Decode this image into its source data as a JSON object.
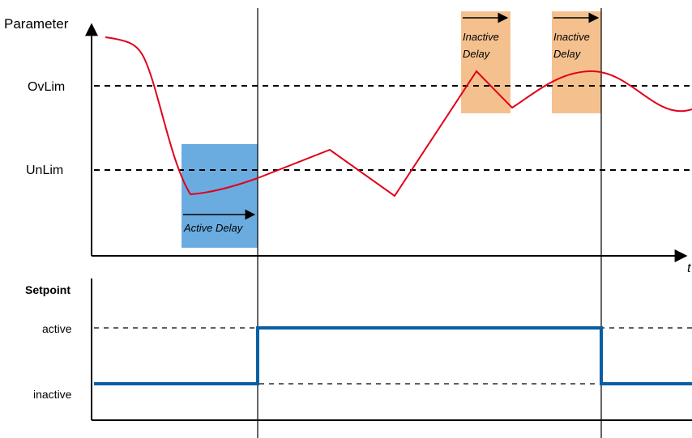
{
  "top_chart": {
    "y_axis_label": "Parameter",
    "x_axis_label": "t",
    "levels": {
      "over_limit": "OvLim",
      "under_limit": "UnLim"
    },
    "active_delay_label": "Active Delay",
    "inactive_delay_label_line1": "Inactive",
    "inactive_delay_label_line2": "Delay"
  },
  "bottom_chart": {
    "y_axis_label": "Setpoint",
    "levels": {
      "active": "active",
      "inactive": "inactive"
    }
  },
  "colors": {
    "parameter_curve": "#e1001a",
    "setpoint_line": "#0a5fa3",
    "active_delay_box": "#6aace0",
    "inactive_delay_box": "#f4c18e",
    "axis": "#000000"
  }
}
